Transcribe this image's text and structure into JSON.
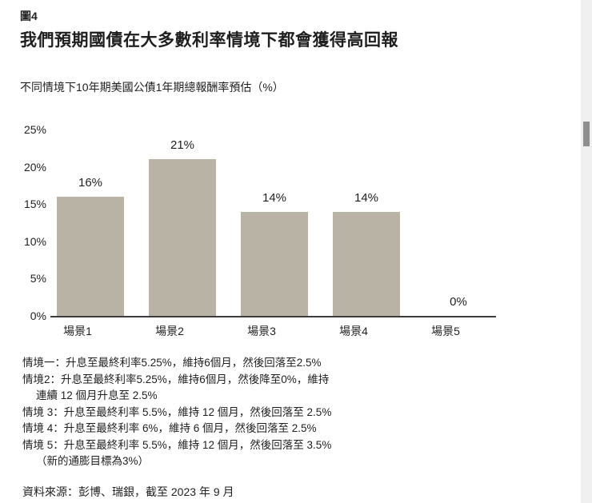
{
  "page": {
    "figure_label": "圖4",
    "title": "我們預期國債在大多數利率情境下都會獲得高回報",
    "subtitle": "不同情境下10年期美國公債1年期總報酬率預估（%）"
  },
  "chart_data": {
    "type": "bar",
    "title": "不同情境下10年期美國公債1年期總報酬率預估（%）",
    "xlabel": "",
    "ylabel": "",
    "categories": [
      "場景1",
      "場景2",
      "場景3",
      "場景4",
      "場景5"
    ],
    "values": [
      16,
      21,
      14,
      14,
      0
    ],
    "bar_labels": [
      "16%",
      "21%",
      "14%",
      "14%",
      "0%"
    ],
    "y_ticks": [
      "25%",
      "20%",
      "15%",
      "10%",
      "5%",
      "0%"
    ],
    "ylim": [
      0,
      25
    ],
    "grid": "off",
    "legend": "none"
  },
  "footnotes": [
    {
      "text": "情境一：升息至最終利率5.25%，維持6個月，然後回落至2.5%",
      "indent": false
    },
    {
      "text": "情境2：升息至最終利率5.25%，維持6個月，然後降至0%，維持",
      "indent": false
    },
    {
      "text": "連續 12 個月升息至 2.5%",
      "indent": true
    },
    {
      "text": "情境 3：升息至最終利率 5.5%，維持 12 個月，然後回落至 2.5%",
      "indent": false
    },
    {
      "text": "情境 4：升息至最終利率 6%，維持 6 個月，然後回落至 2.5%",
      "indent": false
    },
    {
      "text": "情境 5：升息至最終利率 5.5%，維持 12 個月，然後回落至 3.5%",
      "indent": false
    },
    {
      "text": "（新的通膨目標為3%）",
      "indent": true
    }
  ],
  "source": "資料來源：彭博、瑞銀，截至 2023 年 9 月",
  "colors": {
    "bar": "#b8b3a4",
    "axis": "#3c3c3c",
    "text": "#1f1f1f",
    "scrollbar_track": "#f0f0f0",
    "scrollbar_thumb": "#8f8f8f"
  }
}
